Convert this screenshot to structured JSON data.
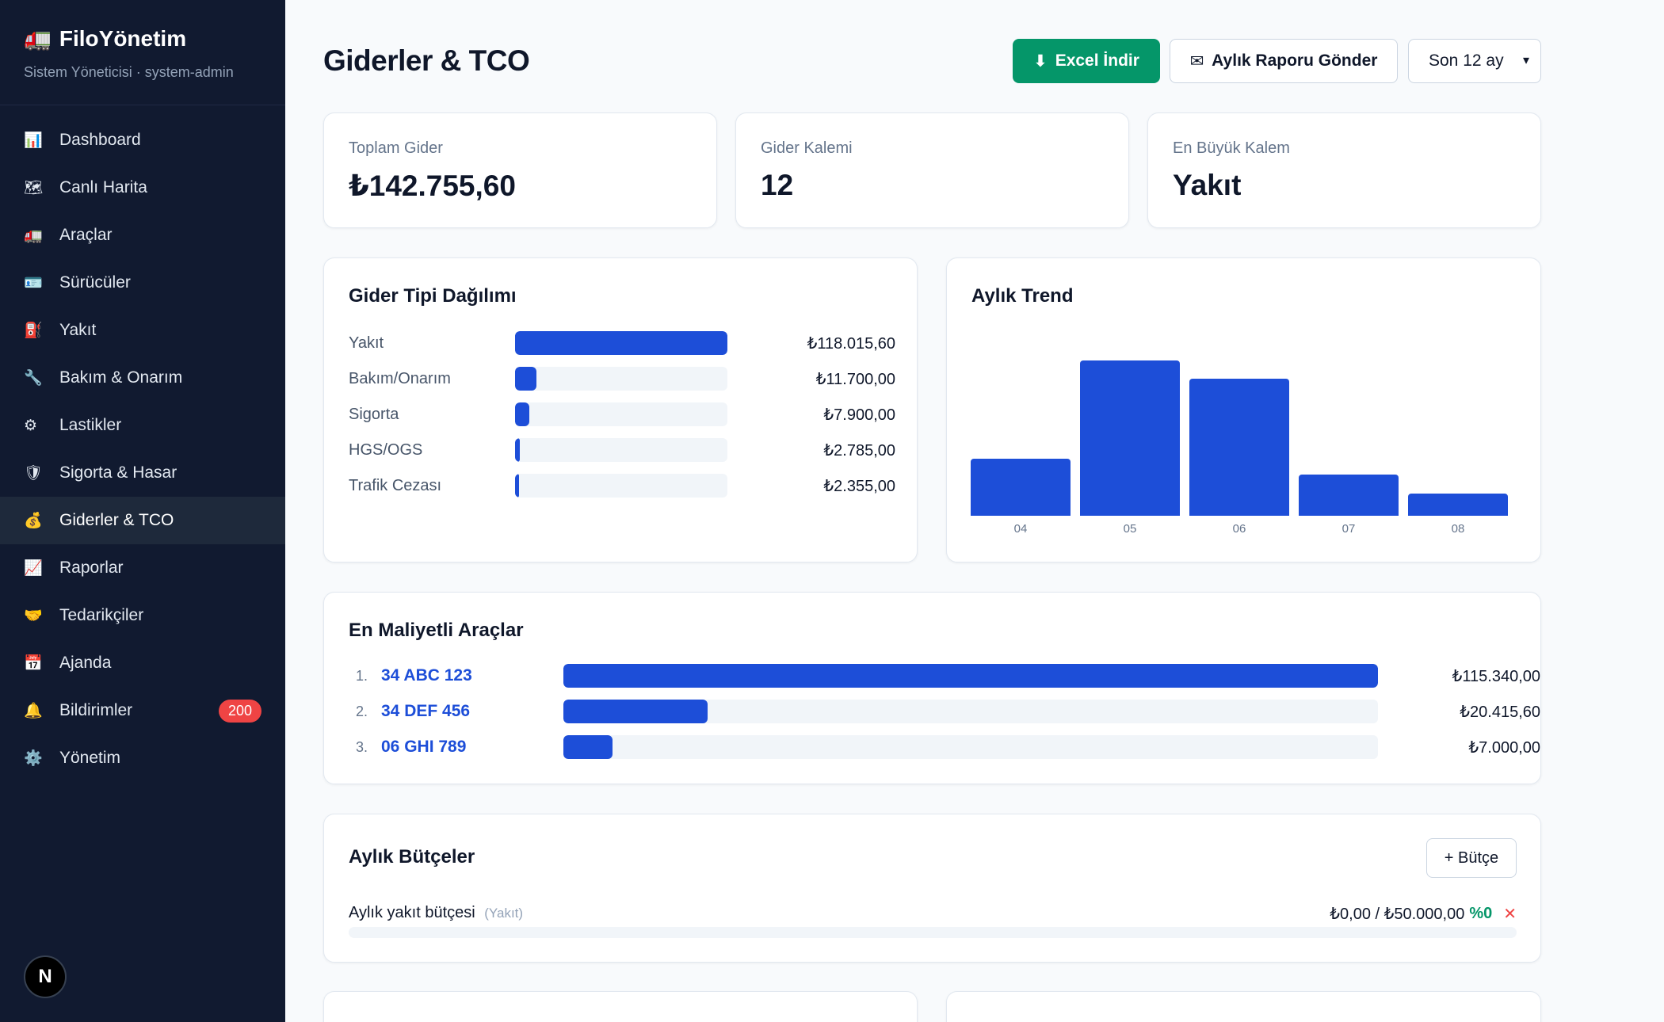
{
  "sidebar": {
    "brand": "FiloYönetim",
    "brand_icon": "truck-icon",
    "user_line": "Sistem Yöneticisi · system-admin",
    "items": [
      {
        "label": "Dashboard",
        "icon": "📊",
        "icon_name": "chart-icon"
      },
      {
        "label": "Canlı Harita",
        "icon": "🗺",
        "icon_name": "map-icon"
      },
      {
        "label": "Araçlar",
        "icon": "🚛",
        "icon_name": "truck-icon"
      },
      {
        "label": "Sürücüler",
        "icon": "🪪",
        "icon_name": "id-card-icon"
      },
      {
        "label": "Yakıt",
        "icon": "⛽",
        "icon_name": "fuel-icon"
      },
      {
        "label": "Bakım & Onarım",
        "icon": "🔧",
        "icon_name": "wrench-icon"
      },
      {
        "label": "Lastikler",
        "icon": "⚙",
        "icon_name": "tire-icon"
      },
      {
        "label": "Sigorta & Hasar",
        "icon": "🛡",
        "icon_name": "shield-icon"
      },
      {
        "label": "Giderler & TCO",
        "icon": "💰",
        "icon_name": "money-bag-icon"
      },
      {
        "label": "Raporlar",
        "icon": "📈",
        "icon_name": "trend-chart-icon"
      },
      {
        "label": "Tedarikçiler",
        "icon": "🤝",
        "icon_name": "handshake-icon"
      },
      {
        "label": "Ajanda",
        "icon": "📅",
        "icon_name": "calendar-icon"
      },
      {
        "label": "Bildirimler",
        "icon": "🔔",
        "icon_name": "bell-icon",
        "badge": "200"
      },
      {
        "label": "Yönetim",
        "icon": "⚙️",
        "icon_name": "gear-icon"
      }
    ],
    "active_index": 8,
    "avatar_letter": "N"
  },
  "header": {
    "title": "Giderler & TCO",
    "excel_label": "Excel İndir",
    "report_label": "Aylık Raporu Gönder",
    "period_value": "Son 12 ay"
  },
  "stats": [
    {
      "label": "Toplam Gider",
      "value": "₺142.755,60"
    },
    {
      "label": "Gider Kalemi",
      "value": "12"
    },
    {
      "label": "En Büyük Kalem",
      "value": "Yakıt"
    }
  ],
  "distribution": {
    "title": "Gider Tipi Dağılımı",
    "rows": [
      {
        "label": "Yakıt",
        "value": "₺118.015,60",
        "amount": 118015.6
      },
      {
        "label": "Bakım/Onarım",
        "value": "₺11.700,00",
        "amount": 11700
      },
      {
        "label": "Sigorta",
        "value": "₺7.900,00",
        "amount": 7900
      },
      {
        "label": "HGS/OGS",
        "value": "₺2.785,00",
        "amount": 2785
      },
      {
        "label": "Trafik Cezası",
        "value": "₺2.355,00",
        "amount": 2355
      }
    ]
  },
  "chart_data": {
    "type": "bar",
    "title": "Aylık Trend",
    "categories": [
      "04",
      "05",
      "06",
      "07",
      "08"
    ],
    "values": [
      14000,
      38000,
      33500,
      10000,
      5500
    ],
    "ylim": [
      0,
      38000
    ]
  },
  "top_vehicles": {
    "title": "En Maliyetli Araçlar",
    "rows": [
      {
        "rank": "1.",
        "plate": "34 ABC 123",
        "value": "₺115.340,00",
        "amount": 115340
      },
      {
        "rank": "2.",
        "plate": "34 DEF 456",
        "value": "₺20.415,60",
        "amount": 20415.6
      },
      {
        "rank": "3.",
        "plate": "06 GHI 789",
        "value": "₺7.000,00",
        "amount": 7000
      }
    ]
  },
  "budgets": {
    "title": "Aylık Bütçeler",
    "add_label": "+ Bütçe",
    "items": [
      {
        "name": "Aylık yakıt bütçesi",
        "type": "(Yakıt)",
        "amount": "₺0,00 / ₺50.000,00",
        "percent": "%0",
        "progress": 0
      }
    ]
  },
  "colors": {
    "accent": "#1d4ed8",
    "success": "#059669",
    "danger": "#ef4444",
    "sidebar": "#111a30"
  }
}
